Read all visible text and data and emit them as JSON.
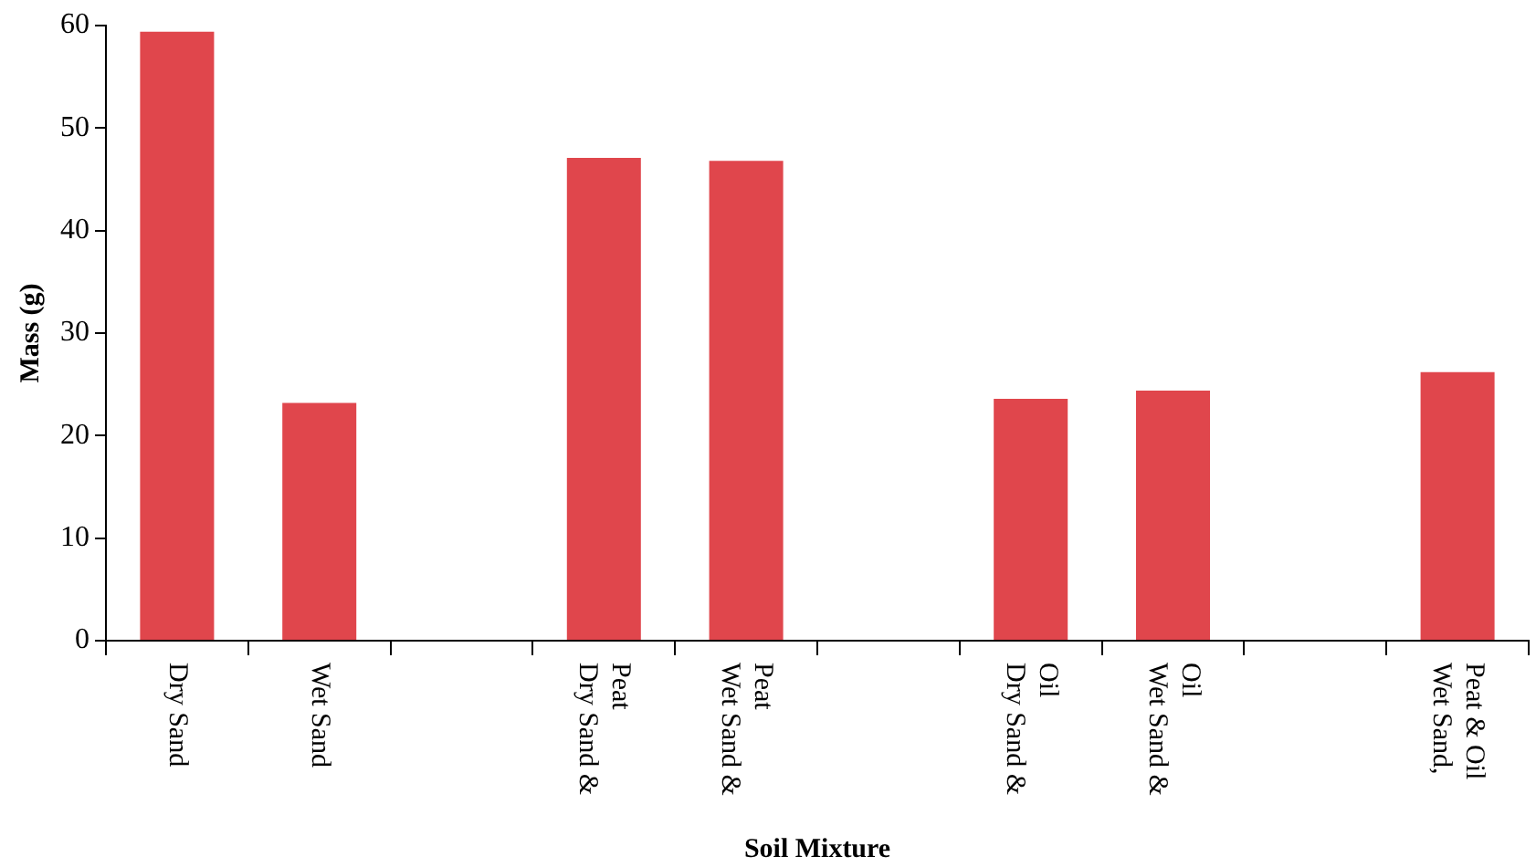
{
  "chart_data": {
    "type": "bar",
    "xlabel": "Soil Mixture",
    "ylabel": "Mass (g)",
    "categories": [
      "Dry Sand",
      "Wet Sand",
      null,
      "Dry Sand & Peat",
      "Wet Sand & Peat",
      null,
      "Dry Sand & Oil",
      "Wet Sand & Oil",
      null,
      "Wet Sand, Peat & Oil"
    ],
    "values": [
      59.4,
      23.2,
      null,
      47.1,
      46.8,
      null,
      23.6,
      24.4,
      null,
      26.2
    ],
    "color": "#e0464c",
    "ylim": [
      0,
      60
    ],
    "yticks": [
      0,
      10,
      20,
      30,
      40,
      50,
      60
    ],
    "grid": false,
    "legend": false
  }
}
